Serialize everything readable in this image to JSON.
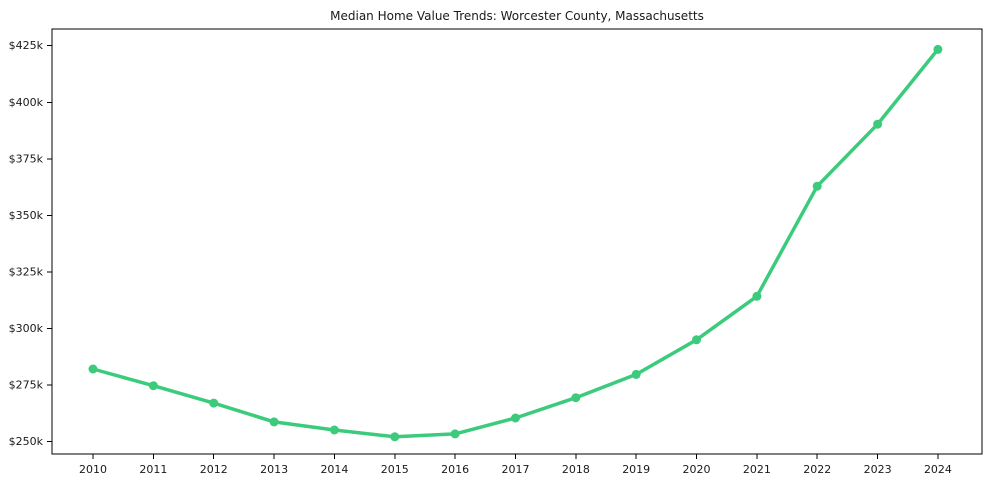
{
  "chart": {
    "line_color": "#3ccb7c",
    "marker_color": "#3ccb7c",
    "axis_color": "#000000",
    "text_color": "#1a1a1a",
    "background_color": "#ffffff"
  },
  "chart_data": {
    "type": "line",
    "title": "Median Home Value Trends: Worcester County, Massachusetts",
    "xlabel": "",
    "ylabel": "",
    "grid": false,
    "legend": false,
    "marker": "circle",
    "x": [
      2010,
      2011,
      2012,
      2013,
      2014,
      2015,
      2016,
      2017,
      2018,
      2019,
      2020,
      2021,
      2022,
      2023,
      2024
    ],
    "x_tick_labels": [
      "2010",
      "2011",
      "2012",
      "2013",
      "2014",
      "2015",
      "2016",
      "2017",
      "2018",
      "2019",
      "2020",
      "2021",
      "2022",
      "2023",
      "2024"
    ],
    "series": [
      {
        "name": "Median Home Value",
        "values_usd_k": [
          282.1,
          274.7,
          267.0,
          258.7,
          255.1,
          252.1,
          253.4,
          260.4,
          269.4,
          279.7,
          295.0,
          314.2,
          362.9,
          390.3,
          423.4
        ]
      }
    ],
    "y_ticks_usd_k": [
      250,
      275,
      300,
      325,
      350,
      375,
      400,
      425
    ],
    "y_tick_labels": [
      "$250k",
      "$275k",
      "$300k",
      "$325k",
      "$350k",
      "$375k",
      "$400k",
      "$425k"
    ],
    "ylim_usd_k": [
      244.5,
      432.4
    ],
    "xlim": [
      2009.32,
      2024.73
    ]
  }
}
